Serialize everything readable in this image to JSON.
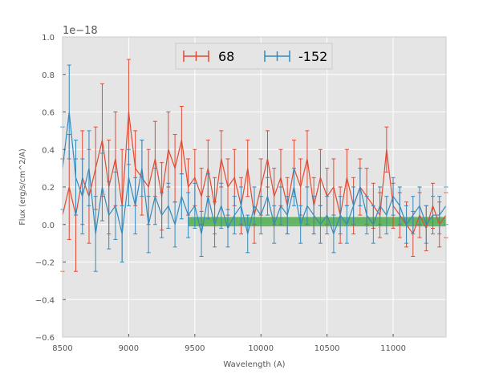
{
  "chart_data": {
    "type": "line",
    "scale_label": "1e−18",
    "xlabel": "Wavelength (A)",
    "ylabel": "Flux (erg/s/cm^2/A)",
    "xlim": [
      8500,
      11400
    ],
    "ylim": [
      -0.6,
      1.0
    ],
    "xticks": [
      8500,
      9000,
      9500,
      10000,
      10500,
      11000
    ],
    "yticks": [
      1.0,
      0.8,
      0.6,
      0.4,
      0.2,
      0.0,
      -0.2,
      -0.4,
      -0.6
    ],
    "ytick_labels": [
      "1.0",
      "0.8",
      "0.6",
      "0.4",
      "0.2",
      "0.0",
      "−0.2",
      "−0.4",
      "−0.6"
    ],
    "grid": true,
    "legend_position": "top-center",
    "band": {
      "x_range": [
        9450,
        11400
      ],
      "y_range": [
        -0.01,
        0.04
      ],
      "color": "#2ca02c"
    },
    "series": [
      {
        "name": "68",
        "color": "#e24a33",
        "x": [
          8500,
          8550,
          8600,
          8650,
          8700,
          8750,
          8800,
          8850,
          8900,
          8950,
          9000,
          9050,
          9100,
          9150,
          9200,
          9250,
          9300,
          9350,
          9400,
          9450,
          9500,
          9550,
          9600,
          9650,
          9700,
          9750,
          9800,
          9850,
          9900,
          9950,
          10000,
          10050,
          10100,
          10150,
          10200,
          10250,
          10300,
          10350,
          10400,
          10450,
          10500,
          10550,
          10600,
          10650,
          10700,
          10750,
          10800,
          10850,
          10900,
          10950,
          11000,
          11050,
          11100,
          11150,
          11200,
          11250,
          11300,
          11350,
          11400
        ],
        "y": [
          0.05,
          0.2,
          0.05,
          0.25,
          0.15,
          0.3,
          0.45,
          0.2,
          0.35,
          0.1,
          0.6,
          0.3,
          0.25,
          0.2,
          0.35,
          0.15,
          0.4,
          0.3,
          0.45,
          0.2,
          0.25,
          0.15,
          0.3,
          0.1,
          0.35,
          0.2,
          0.25,
          0.1,
          0.3,
          0.05,
          0.2,
          0.35,
          0.15,
          0.25,
          0.1,
          0.3,
          0.2,
          0.35,
          0.1,
          0.25,
          0.15,
          0.2,
          0.05,
          0.25,
          0.1,
          0.2,
          0.15,
          0.1,
          0.05,
          0.4,
          0.1,
          0.05,
          0.0,
          -0.05,
          0.05,
          -0.02,
          0.1,
          0.0,
          0.05
        ],
        "err": [
          0.3,
          0.28,
          0.3,
          0.25,
          0.25,
          0.22,
          0.3,
          0.25,
          0.25,
          0.3,
          0.28,
          0.2,
          0.2,
          0.2,
          0.2,
          0.18,
          0.2,
          0.18,
          0.18,
          0.15,
          0.15,
          0.15,
          0.15,
          0.15,
          0.15,
          0.15,
          0.15,
          0.15,
          0.15,
          0.15,
          0.15,
          0.15,
          0.15,
          0.15,
          0.15,
          0.15,
          0.15,
          0.15,
          0.15,
          0.15,
          0.15,
          0.15,
          0.15,
          0.15,
          0.15,
          0.15,
          0.15,
          0.12,
          0.12,
          0.12,
          0.12,
          0.12,
          0.12,
          0.12,
          0.12,
          0.12,
          0.12,
          0.12,
          0.12
        ]
      },
      {
        "name": "-152",
        "color": "#348abd",
        "x": [
          8500,
          8550,
          8600,
          8650,
          8700,
          8750,
          8800,
          8850,
          8900,
          8950,
          9000,
          9050,
          9100,
          9150,
          9200,
          9250,
          9300,
          9350,
          9400,
          9450,
          9500,
          9550,
          9600,
          9650,
          9700,
          9750,
          9800,
          9850,
          9900,
          9950,
          10000,
          10050,
          10100,
          10150,
          10200,
          10250,
          10300,
          10350,
          10400,
          10450,
          10500,
          10550,
          10600,
          10650,
          10700,
          10750,
          10800,
          10850,
          10900,
          10950,
          11000,
          11050,
          11100,
          11150,
          11200,
          11250,
          11300,
          11350,
          11400
        ],
        "y": [
          0.3,
          0.6,
          0.25,
          0.15,
          0.3,
          -0.05,
          0.2,
          0.05,
          0.1,
          -0.05,
          0.25,
          0.1,
          0.3,
          0.0,
          0.15,
          0.05,
          0.1,
          0.0,
          0.15,
          0.05,
          0.1,
          -0.05,
          0.15,
          0.0,
          0.1,
          -0.02,
          0.05,
          0.1,
          -0.05,
          0.1,
          0.05,
          0.15,
          0.0,
          0.1,
          0.05,
          0.2,
          0.0,
          0.1,
          0.05,
          0.0,
          0.05,
          -0.05,
          0.05,
          0.0,
          0.1,
          0.2,
          0.05,
          0.0,
          0.1,
          0.05,
          0.15,
          0.1,
          0.0,
          0.05,
          0.1,
          0.0,
          0.05,
          0.05,
          0.1
        ],
        "err": [
          0.22,
          0.25,
          0.2,
          0.2,
          0.2,
          0.2,
          0.18,
          0.18,
          0.18,
          0.15,
          0.15,
          0.15,
          0.15,
          0.15,
          0.15,
          0.12,
          0.12,
          0.12,
          0.12,
          0.12,
          0.12,
          0.12,
          0.12,
          0.12,
          0.12,
          0.1,
          0.1,
          0.1,
          0.1,
          0.1,
          0.1,
          0.1,
          0.1,
          0.1,
          0.1,
          0.1,
          0.1,
          0.1,
          0.1,
          0.1,
          0.1,
          0.1,
          0.1,
          0.1,
          0.1,
          0.1,
          0.1,
          0.1,
          0.1,
          0.1,
          0.1,
          0.1,
          0.1,
          0.1,
          0.1,
          0.1,
          0.1,
          0.1,
          0.1
        ]
      }
    ]
  }
}
